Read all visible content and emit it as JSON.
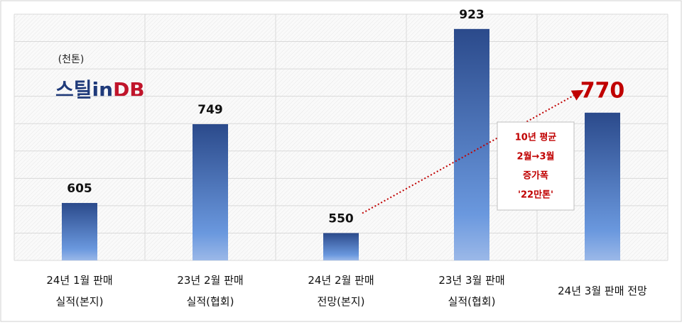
{
  "chart_data": {
    "type": "bar",
    "unit_label": "(천톤)",
    "logo": [
      "스틸in",
      "DB"
    ],
    "categories": [
      "24년 1월 판매\n실적(본지)",
      "23년 2월 판매\n실적(협회)",
      "24년 2월 판매\n전망(본지)",
      "23년 3월 판매\n실적(협회)",
      "24년 3월 판매 전망"
    ],
    "values": [
      605,
      749,
      550,
      923,
      770
    ],
    "colors": [
      "#2b4a8b",
      "#6a98de"
    ],
    "highlight_color": "#c00000",
    "ylim": [
      500,
      950
    ],
    "yticks": [
      500,
      550,
      600,
      650,
      700,
      750,
      800,
      850,
      900,
      950
    ],
    "grid": true,
    "annotation": "10년 평균\n2월→3월\n증가폭\n'22만톤'"
  }
}
